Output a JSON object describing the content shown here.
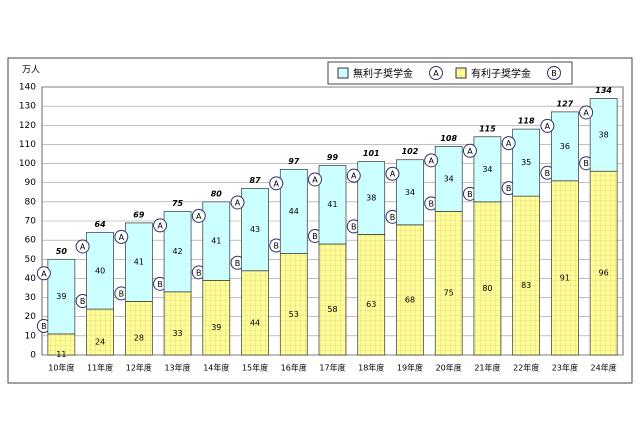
{
  "chart_data": {
    "type": "stacked-bar",
    "y_unit": "万人",
    "categories": [
      "10年度",
      "11年度",
      "12年度",
      "13年度",
      "14年度",
      "15年度",
      "16年度",
      "17年度",
      "18年度",
      "19年度",
      "20年度",
      "21年度",
      "22年度",
      "23年度",
      "24年度"
    ],
    "series": [
      {
        "name": "有利子奨学金",
        "marker": "B",
        "color": "#ffff99",
        "values": [
          11,
          24,
          28,
          33,
          39,
          44,
          53,
          58,
          63,
          68,
          75,
          80,
          83,
          91,
          96
        ]
      },
      {
        "name": "無利子奨学金",
        "marker": "A",
        "color": "#ccffff",
        "values": [
          39,
          40,
          41,
          42,
          41,
          43,
          44,
          41,
          38,
          34,
          34,
          34,
          35,
          36,
          38
        ]
      }
    ],
    "totals": [
      50,
      64,
      69,
      75,
      80,
      87,
      97,
      99,
      101,
      102,
      108,
      115,
      118,
      127,
      134
    ],
    "ylim": [
      0,
      140
    ],
    "yticks": [
      0,
      10,
      20,
      30,
      40,
      50,
      60,
      70,
      80,
      90,
      100,
      110,
      120,
      130,
      140
    ],
    "grid": true,
    "legend": "top-right"
  }
}
